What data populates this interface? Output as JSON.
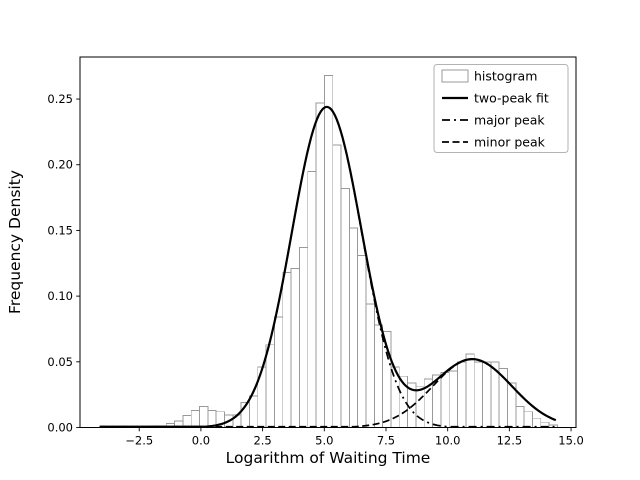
{
  "window": {
    "background": "#ffffff"
  },
  "chart_data": {
    "type": "bar",
    "subtype": "histogram-with-fit-curves",
    "title": "",
    "xlabel": "Logarithm of Waiting Time",
    "ylabel": "Frequency Density",
    "xlim": [
      -4.9,
      15.2
    ],
    "ylim": [
      0,
      0.282
    ],
    "grid": false,
    "x_ticks": {
      "values": [
        -2.5,
        0.0,
        2.5,
        5.0,
        7.5,
        10.0,
        12.5,
        15.0
      ],
      "labels": [
        "−2.5",
        "0.0",
        "2.5",
        "5.0",
        "7.5",
        "10.0",
        "12.5",
        "15.0"
      ]
    },
    "y_ticks": {
      "values": [
        0.0,
        0.05,
        0.1,
        0.15,
        0.2,
        0.25
      ],
      "labels": [
        "0.00",
        "0.05",
        "0.10",
        "0.15",
        "0.20",
        "0.25"
      ]
    },
    "histogram": {
      "label": "histogram",
      "bin_start": -2.08,
      "bin_width": 0.3373,
      "heights": [
        0.001,
        0.001,
        0.003,
        0.005,
        0.009,
        0.013,
        0.016,
        0.013,
        0.012,
        0.0095,
        0.0095,
        0.019,
        0.024,
        0.046,
        0.063,
        0.084,
        0.118,
        0.121,
        0.137,
        0.195,
        0.247,
        0.268,
        0.215,
        0.182,
        0.152,
        0.131,
        0.094,
        0.078,
        0.073,
        0.046,
        0.039,
        0.034,
        0.031,
        0.037,
        0.04,
        0.042,
        0.043,
        0.05,
        0.056,
        0.05,
        0.05,
        0.05,
        0.045,
        0.034,
        0.016,
        0.012,
        0.007,
        0.004,
        0.002
      ]
    },
    "curve_x_range": [
      -4.1,
      14.45
    ],
    "curves": [
      {
        "label": "two-peak fit",
        "style": "solid",
        "composition": "major+minor"
      },
      {
        "label": "major peak",
        "style": "dashdot",
        "gaussian": {
          "amplitude": 0.244,
          "mean": 5.1,
          "sigma": 1.42
        }
      },
      {
        "label": "minor peak",
        "style": "dashed",
        "gaussian": {
          "amplitude": 0.052,
          "mean": 11.0,
          "sigma": 1.6
        }
      }
    ],
    "legend": {
      "position": "upper right",
      "entries": [
        {
          "label": "histogram",
          "style": "patch"
        },
        {
          "label": "two-peak fit",
          "style": "solid"
        },
        {
          "label": "major peak",
          "style": "dashdot"
        },
        {
          "label": "minor peak",
          "style": "dashed"
        }
      ]
    }
  },
  "colors": {
    "curve": "#000000",
    "bar_fill": "#ffffff",
    "bar_edge": "#999999",
    "axis": "#000000",
    "legend_border": "#b3b3b3",
    "text": "#000000"
  }
}
